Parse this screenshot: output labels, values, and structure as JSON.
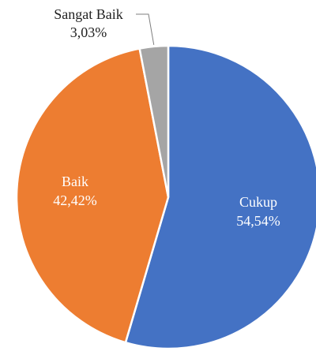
{
  "chart_data": {
    "type": "pie",
    "slices": [
      {
        "label": "Cukup",
        "value": 54.54,
        "value_label": "54,54%",
        "color": "#4472C4",
        "label_placement": "inside"
      },
      {
        "label": "Baik",
        "value": 42.42,
        "value_label": "42,42%",
        "color": "#ED7D31",
        "label_placement": "inside"
      },
      {
        "label": "Sangat Baik",
        "value": 3.03,
        "value_label": "3,03%",
        "color": "#A5A5A5",
        "label_placement": "outside-with-leader"
      }
    ],
    "start_angle_deg": 0,
    "direction": "clockwise",
    "legend": false,
    "slice_border_color": "#ffffff"
  }
}
